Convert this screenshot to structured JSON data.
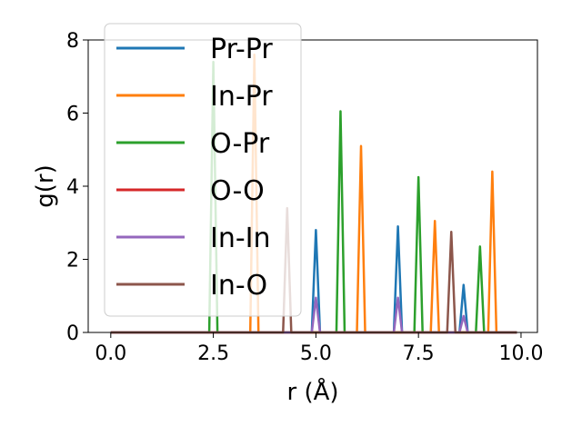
{
  "chart_data": {
    "type": "line",
    "xlabel": "r (Å)",
    "ylabel": "g(r)",
    "xlim": [
      -0.55,
      10.4
    ],
    "ylim": [
      0,
      8
    ],
    "xticks": [
      0.0,
      2.5,
      5.0,
      7.5,
      10.0
    ],
    "xtick_labels": [
      "0.0",
      "2.5",
      "5.0",
      "7.5",
      "10.0"
    ],
    "yticks": [
      0,
      2,
      4,
      6,
      8
    ],
    "ytick_labels": [
      "0",
      "2",
      "4",
      "6",
      "8"
    ],
    "grid": false,
    "legend_position": "top-left",
    "x_range": [
      0.0,
      9.9
    ],
    "peak_half_width": 0.1,
    "series": [
      {
        "name": "Pr-Pr",
        "color": "#1f77b4",
        "peaks": [
          [
            5.0,
            2.8
          ],
          [
            7.0,
            2.9
          ],
          [
            8.6,
            1.3
          ]
        ]
      },
      {
        "name": "In-Pr",
        "color": "#ff7f0e",
        "peaks": [
          [
            3.5,
            7.6
          ],
          [
            6.1,
            5.1
          ],
          [
            7.9,
            3.05
          ],
          [
            9.3,
            4.4
          ]
        ]
      },
      {
        "name": "O-Pr",
        "color": "#2ca02c",
        "peaks": [
          [
            2.5,
            7.4
          ],
          [
            5.6,
            6.05
          ],
          [
            7.5,
            4.25
          ],
          [
            9.0,
            2.35
          ]
        ]
      },
      {
        "name": "O-O",
        "color": "#d62728",
        "peaks": []
      },
      {
        "name": "In-In",
        "color": "#9467bd",
        "peaks": [
          [
            5.0,
            0.95
          ],
          [
            7.0,
            0.95
          ],
          [
            8.6,
            0.45
          ]
        ]
      },
      {
        "name": "In-O",
        "color": "#8c564b",
        "peaks": [
          [
            4.3,
            3.4
          ],
          [
            8.3,
            2.75
          ]
        ]
      }
    ]
  }
}
